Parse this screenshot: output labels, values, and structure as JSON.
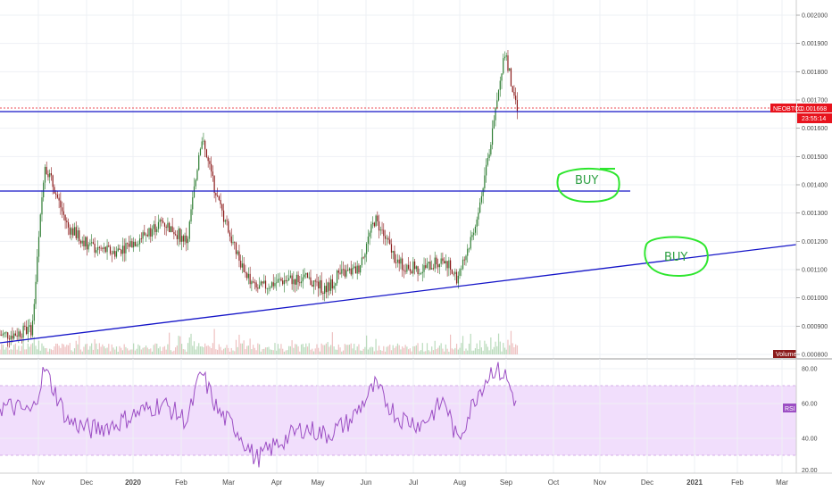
{
  "symbol": "NEOBTC",
  "last_price": "0.001668",
  "countdown": "23:55:14",
  "volume_label": "Volume",
  "rsi_label": "RSI",
  "price_axis": [
    "0.002000",
    "0.001900",
    "0.001800",
    "0.001700",
    "0.001600",
    "0.001500",
    "0.001400",
    "0.001300",
    "0.001200",
    "0.001100",
    "0.001000",
    "0.000900",
    "0.000800"
  ],
  "rsi_axis": [
    "80.00",
    "60.00",
    "40.00",
    "20.00"
  ],
  "time_axis": [
    {
      "label": "Nov",
      "bold": false
    },
    {
      "label": "Dec",
      "bold": false
    },
    {
      "label": "2020",
      "bold": true
    },
    {
      "label": "Feb",
      "bold": false
    },
    {
      "label": "Mar",
      "bold": false
    },
    {
      "label": "Apr",
      "bold": false
    },
    {
      "label": "May",
      "bold": false
    },
    {
      "label": "Jun",
      "bold": false
    },
    {
      "label": "Jul",
      "bold": false
    },
    {
      "label": "Aug",
      "bold": false
    },
    {
      "label": "Sep",
      "bold": false
    },
    {
      "label": "Oct",
      "bold": false
    },
    {
      "label": "Nov",
      "bold": false
    },
    {
      "label": "Dec",
      "bold": false
    },
    {
      "label": "2021",
      "bold": true
    },
    {
      "label": "Feb",
      "bold": false
    },
    {
      "label": "Mar",
      "bold": false
    }
  ],
  "annotations": {
    "buy1": "BUY",
    "buy2": "BUY"
  },
  "colors": {
    "up": "#2e7d32",
    "down": "#8b1a1a",
    "line": "#1515c8",
    "rsi": "#9c4fc4",
    "rsi_band": "#f1defc",
    "price_tag": "#e8131d",
    "annotation": "#2ee62e"
  },
  "chart_data": [
    {
      "type": "line",
      "title": "NEOBTC",
      "x": [
        "2019-10-15",
        "2019-10-28",
        "2019-11-05",
        "2019-11-20",
        "2019-12-05",
        "2019-12-20",
        "2020-01-05",
        "2020-01-20",
        "2020-02-05",
        "2020-02-14",
        "2020-02-25",
        "2020-03-08",
        "2020-03-20",
        "2020-04-05",
        "2020-04-20",
        "2020-05-05",
        "2020-05-12",
        "2020-05-25",
        "2020-06-05",
        "2020-06-20",
        "2020-07-05",
        "2020-07-20",
        "2020-07-28",
        "2020-08-10",
        "2020-08-20",
        "2020-08-28",
        "2020-09-01",
        "2020-09-05"
      ],
      "values": [
        0.00087,
        0.00089,
        0.00148,
        0.00125,
        0.00118,
        0.00116,
        0.00121,
        0.00127,
        0.0012,
        0.00157,
        0.00134,
        0.00115,
        0.00103,
        0.00106,
        0.00107,
        0.00103,
        0.00108,
        0.0011,
        0.00128,
        0.00112,
        0.0011,
        0.00114,
        0.00106,
        0.00128,
        0.0016,
        0.00188,
        0.00175,
        0.00167
      ],
      "ylim": [
        0.0008,
        0.00205
      ]
    },
    {
      "type": "line",
      "title": "RSI",
      "x": [
        "2019-10-15",
        "2019-10-28",
        "2019-11-05",
        "2019-11-20",
        "2019-12-05",
        "2019-12-20",
        "2020-01-05",
        "2020-01-20",
        "2020-02-05",
        "2020-02-14",
        "2020-02-25",
        "2020-03-08",
        "2020-03-20",
        "2020-04-05",
        "2020-04-20",
        "2020-05-05",
        "2020-05-20",
        "2020-06-05",
        "2020-06-20",
        "2020-07-05",
        "2020-07-20",
        "2020-07-28",
        "2020-08-10",
        "2020-08-20",
        "2020-08-28",
        "2020-09-05"
      ],
      "values": [
        58,
        55,
        80,
        50,
        45,
        48,
        55,
        60,
        50,
        78,
        55,
        45,
        28,
        38,
        46,
        42,
        50,
        70,
        52,
        48,
        62,
        38,
        66,
        80,
        76,
        58
      ],
      "ylim": [
        20,
        85
      ],
      "bands": [
        30,
        70
      ]
    }
  ]
}
